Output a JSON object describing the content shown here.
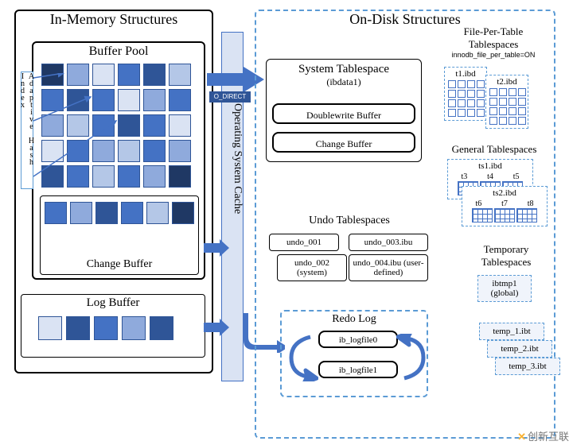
{
  "inmem": {
    "title": "In-Memory Structures"
  },
  "bufferPool": {
    "title": "Buffer Pool"
  },
  "ahi": {
    "label": "Adaptive Hash Index"
  },
  "changeBuffer": {
    "label": "Change Buffer"
  },
  "logBuffer": {
    "label": "Log Buffer"
  },
  "osCache": {
    "label": "Operating System Cache",
    "bypass": "O_DIRECT"
  },
  "ondisk": {
    "title": "On-Disk Structures"
  },
  "systemTablespace": {
    "title": "System Tablespace",
    "subtitle": "(ibdata1)",
    "doublewrite": "Doublewrite Buffer",
    "changeBuffer": "Change Buffer"
  },
  "filePerTable": {
    "title": "File-Per-Table Tablespaces",
    "subtitle": "innodb_file_per_table=ON",
    "t1": "t1.ibd",
    "t2": "t2.ibd"
  },
  "generalTablespaces": {
    "title": "General Tablespaces",
    "ts1": "ts1.ibd",
    "ts1_tables": [
      "t3",
      "t4",
      "t5"
    ],
    "ts2": "ts2.ibd",
    "ts2_tables": [
      "t6",
      "t7",
      "t8"
    ]
  },
  "undo": {
    "title": "Undo Tablespaces",
    "u1": "undo_001",
    "u2": "undo_002 (system)",
    "u3": "undo_003.ibu",
    "u4": "undo_004.ibu (user-defined)"
  },
  "redo": {
    "title": "Redo Log",
    "f0": "ib_logfile0",
    "f1": "ib_logfile1"
  },
  "temp": {
    "title": "Temporary Tablespaces",
    "global": "ibtmp1 (global)",
    "t1": "temp_1.ibt",
    "t2": "temp_2.ibt",
    "t3": "temp_3.ibt"
  },
  "watermark": "创新互联",
  "colors": {
    "bufferGrid": [
      "#1f3864",
      "#8faadc",
      "#dae3f3",
      "#4472c4",
      "#2f5597",
      "#b4c7e7",
      "#4472c4",
      "#2f5597",
      "#4472c4",
      "#dae3f3",
      "#8faadc",
      "#4472c4",
      "#8faadc",
      "#b4c7e7",
      "#4472c4",
      "#2f5597",
      "#4472c4",
      "#dae3f3",
      "#dae3f3",
      "#4472c4",
      "#8faadc",
      "#b4c7e7",
      "#4472c4",
      "#8faadc",
      "#2f5597",
      "#4472c4",
      "#b4c7e7",
      "#4472c4",
      "#8faadc",
      "#1f3864"
    ],
    "cbGrid": [
      "#4472c4",
      "#8faadc",
      "#2f5597",
      "#4472c4",
      "#b4c7e7",
      "#1f3864"
    ],
    "lbGrid": [
      "#dae3f3",
      "#2f5597",
      "#4472c4",
      "#8faadc",
      "#2f5597"
    ],
    "arrowFill": "#4472c4",
    "ahiArrow": "#4472c4",
    "dashedBorder": "#5b9bd5",
    "osCacheBg": "#dae3f3"
  }
}
